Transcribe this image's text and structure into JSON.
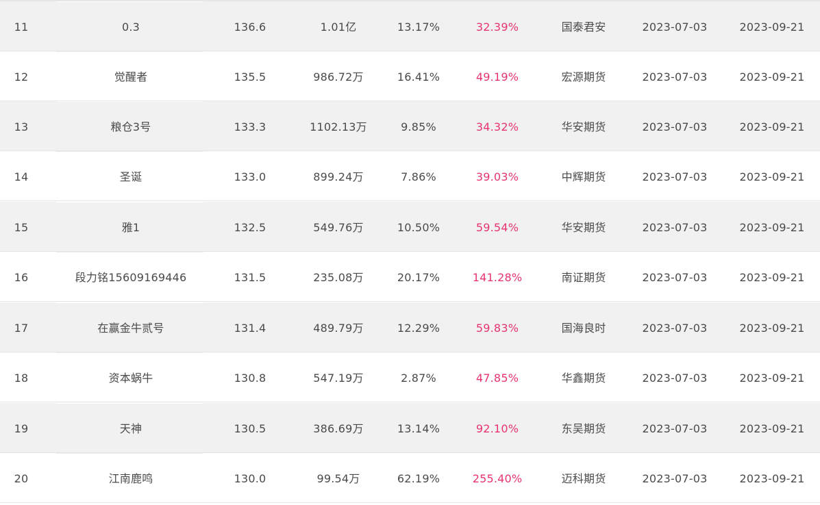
{
  "rows": [
    {
      "rank": "11",
      "name": "0.3",
      "index": "136.6",
      "equity": "1.01亿",
      "drawdown": "13.17%",
      "return": "32.39%",
      "broker": "国泰君安",
      "start": "2023-07-03",
      "end": "2023-09-21"
    },
    {
      "rank": "12",
      "name": "觉醒者",
      "index": "135.5",
      "equity": "986.72万",
      "drawdown": "16.41%",
      "return": "49.19%",
      "broker": "宏源期货",
      "start": "2023-07-03",
      "end": "2023-09-21"
    },
    {
      "rank": "13",
      "name": "粮仓3号",
      "index": "133.3",
      "equity": "1102.13万",
      "drawdown": "9.85%",
      "return": "34.32%",
      "broker": "华安期货",
      "start": "2023-07-03",
      "end": "2023-09-21"
    },
    {
      "rank": "14",
      "name": "圣诞",
      "index": "133.0",
      "equity": "899.24万",
      "drawdown": "7.86%",
      "return": "39.03%",
      "broker": "中辉期货",
      "start": "2023-07-03",
      "end": "2023-09-21"
    },
    {
      "rank": "15",
      "name": "雅1",
      "index": "132.5",
      "equity": "549.76万",
      "drawdown": "10.50%",
      "return": "59.54%",
      "broker": "华安期货",
      "start": "2023-07-03",
      "end": "2023-09-21"
    },
    {
      "rank": "16",
      "name": "段力铭15609169446",
      "index": "131.5",
      "equity": "235.08万",
      "drawdown": "20.17%",
      "return": "141.28%",
      "broker": "南证期货",
      "start": "2023-07-03",
      "end": "2023-09-21"
    },
    {
      "rank": "17",
      "name": "在赢金牛贰号",
      "index": "131.4",
      "equity": "489.79万",
      "drawdown": "12.29%",
      "return": "59.83%",
      "broker": "国海良时",
      "start": "2023-07-03",
      "end": "2023-09-21"
    },
    {
      "rank": "18",
      "name": "资本蜗牛",
      "index": "130.8",
      "equity": "547.19万",
      "drawdown": "2.87%",
      "return": "47.85%",
      "broker": "华鑫期货",
      "start": "2023-07-03",
      "end": "2023-09-21"
    },
    {
      "rank": "19",
      "name": "天神",
      "index": "130.5",
      "equity": "386.69万",
      "drawdown": "13.14%",
      "return": "92.10%",
      "broker": "东吴期货",
      "start": "2023-07-03",
      "end": "2023-09-21"
    },
    {
      "rank": "20",
      "name": "江南鹿鸣",
      "index": "130.0",
      "equity": "99.54万",
      "drawdown": "62.19%",
      "return": "255.40%",
      "broker": "迈科期货",
      "start": "2023-07-03",
      "end": "2023-09-21"
    }
  ],
  "colors": {
    "return_text": "#e8336f",
    "row_shaded": "#f1f1f1",
    "row_plain": "#ffffff",
    "body_text": "#4a4a4a"
  }
}
